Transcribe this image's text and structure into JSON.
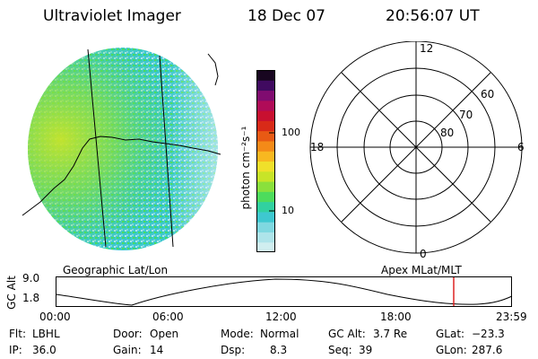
{
  "header": {
    "title": "Ultraviolet Imager",
    "date": "18 Dec 07",
    "time": "20:56:07 UT"
  },
  "colorbar": {
    "unit_label": "photon cm⁻²s⁻¹",
    "tick_100": "100",
    "tick_10": "10",
    "colors": [
      "#d0eef0",
      "#aee4ea",
      "#7fd8e0",
      "#3ec8d0",
      "#31d1a0",
      "#4ddc5c",
      "#8ae03c",
      "#c8e428",
      "#f0e02a",
      "#f8b820",
      "#f48a18",
      "#e85a14",
      "#d82a18",
      "#c81030",
      "#b00c58",
      "#800c70",
      "#400a60",
      "#180620"
    ]
  },
  "polar": {
    "label_12": "12",
    "label_18": "18",
    "label_6": "6",
    "label_0": "0",
    "label_60": "60",
    "label_70": "70",
    "label_80": "80"
  },
  "captions": {
    "left": "Geographic Lat/Lon",
    "right": "Apex MLat/MLT"
  },
  "altitude_plot": {
    "ylabel": "GC Alt",
    "ymax": "9.0",
    "ymin": "1.8",
    "x_ticks": [
      "00:00",
      "06:00",
      "12:00",
      "18:00",
      "23:59"
    ],
    "marker_color": "#dd2222"
  },
  "info": {
    "flt_label": "Flt:",
    "flt_value": "LBHL",
    "ip_label": "IP:",
    "ip_value": "36.0",
    "door_label": "Door:",
    "door_value": "Open",
    "gain_label": "Gain:",
    "gain_value": "14",
    "mode_label": "Mode:",
    "mode_value": "Normal",
    "dsp_label": "Dsp:",
    "dsp_value": "8.3",
    "gcalt_label": "GC Alt:",
    "gcalt_value": "3.7 Re",
    "seq_label": "Seq:",
    "seq_value": "39",
    "glat_label": "GLat:",
    "glat_value": "−23.3",
    "glon_label": "GLon:",
    "glon_value": "287.6"
  }
}
